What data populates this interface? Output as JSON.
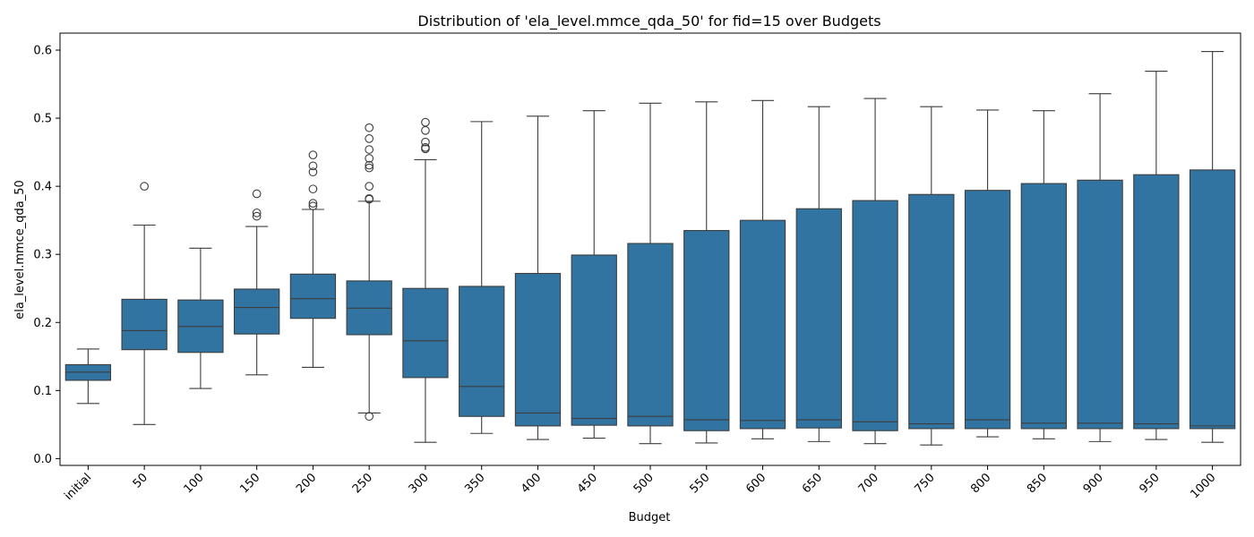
{
  "chart_data": {
    "type": "box",
    "title": "Distribution of 'ela_level.mmce_qda_50' for fid=15 over Budgets",
    "xlabel": "Budget",
    "ylabel": "ela_level.mmce_qda_50",
    "ylim": [
      -0.01,
      0.625
    ],
    "yticks": [
      "0.0",
      "0.1",
      "0.2",
      "0.3",
      "0.4",
      "0.5",
      "0.6"
    ],
    "box_color": "#3274a1",
    "line_color": "#3d3d3d",
    "grid": false,
    "categories": [
      "initial",
      "50",
      "100",
      "150",
      "200",
      "250",
      "300",
      "350",
      "400",
      "450",
      "500",
      "550",
      "600",
      "650",
      "700",
      "750",
      "800",
      "850",
      "900",
      "950",
      "1000"
    ],
    "boxes": [
      {
        "whisker_low": 0.081,
        "q1": 0.115,
        "median": 0.127,
        "q3": 0.138,
        "whisker_high": 0.161,
        "outliers": []
      },
      {
        "whisker_low": 0.05,
        "q1": 0.16,
        "median": 0.188,
        "q3": 0.234,
        "whisker_high": 0.343,
        "outliers": [
          0.4
        ]
      },
      {
        "whisker_low": 0.103,
        "q1": 0.156,
        "median": 0.194,
        "q3": 0.233,
        "whisker_high": 0.309,
        "outliers": []
      },
      {
        "whisker_low": 0.123,
        "q1": 0.183,
        "median": 0.222,
        "q3": 0.249,
        "whisker_high": 0.341,
        "outliers": [
          0.356,
          0.361,
          0.389
        ]
      },
      {
        "whisker_low": 0.134,
        "q1": 0.206,
        "median": 0.235,
        "q3": 0.271,
        "whisker_high": 0.366,
        "outliers": [
          0.371,
          0.375,
          0.396,
          0.421,
          0.43,
          0.446
        ]
      },
      {
        "whisker_low": 0.067,
        "q1": 0.182,
        "median": 0.221,
        "q3": 0.261,
        "whisker_high": 0.378,
        "outliers": [
          0.062,
          0.381,
          0.382,
          0.4,
          0.427,
          0.431,
          0.441,
          0.454,
          0.47,
          0.486
        ]
      },
      {
        "whisker_low": 0.024,
        "q1": 0.119,
        "median": 0.173,
        "q3": 0.25,
        "whisker_high": 0.439,
        "outliers": [
          0.455,
          0.457,
          0.465,
          0.482,
          0.494
        ]
      },
      {
        "whisker_low": 0.037,
        "q1": 0.062,
        "median": 0.106,
        "q3": 0.253,
        "whisker_high": 0.495,
        "outliers": []
      },
      {
        "whisker_low": 0.028,
        "q1": 0.048,
        "median": 0.067,
        "q3": 0.272,
        "whisker_high": 0.503,
        "outliers": []
      },
      {
        "whisker_low": 0.03,
        "q1": 0.049,
        "median": 0.059,
        "q3": 0.299,
        "whisker_high": 0.511,
        "outliers": []
      },
      {
        "whisker_low": 0.022,
        "q1": 0.048,
        "median": 0.062,
        "q3": 0.316,
        "whisker_high": 0.522,
        "outliers": []
      },
      {
        "whisker_low": 0.023,
        "q1": 0.041,
        "median": 0.057,
        "q3": 0.335,
        "whisker_high": 0.524,
        "outliers": []
      },
      {
        "whisker_low": 0.029,
        "q1": 0.044,
        "median": 0.056,
        "q3": 0.35,
        "whisker_high": 0.526,
        "outliers": []
      },
      {
        "whisker_low": 0.025,
        "q1": 0.045,
        "median": 0.057,
        "q3": 0.367,
        "whisker_high": 0.517,
        "outliers": []
      },
      {
        "whisker_low": 0.022,
        "q1": 0.041,
        "median": 0.054,
        "q3": 0.379,
        "whisker_high": 0.529,
        "outliers": []
      },
      {
        "whisker_low": 0.02,
        "q1": 0.044,
        "median": 0.051,
        "q3": 0.388,
        "whisker_high": 0.517,
        "outliers": []
      },
      {
        "whisker_low": 0.032,
        "q1": 0.044,
        "median": 0.057,
        "q3": 0.394,
        "whisker_high": 0.512,
        "outliers": []
      },
      {
        "whisker_low": 0.029,
        "q1": 0.044,
        "median": 0.052,
        "q3": 0.404,
        "whisker_high": 0.511,
        "outliers": []
      },
      {
        "whisker_low": 0.025,
        "q1": 0.044,
        "median": 0.052,
        "q3": 0.409,
        "whisker_high": 0.536,
        "outliers": []
      },
      {
        "whisker_low": 0.028,
        "q1": 0.044,
        "median": 0.051,
        "q3": 0.417,
        "whisker_high": 0.569,
        "outliers": []
      },
      {
        "whisker_low": 0.024,
        "q1": 0.044,
        "median": 0.048,
        "q3": 0.424,
        "whisker_high": 0.598,
        "outliers": []
      }
    ]
  }
}
